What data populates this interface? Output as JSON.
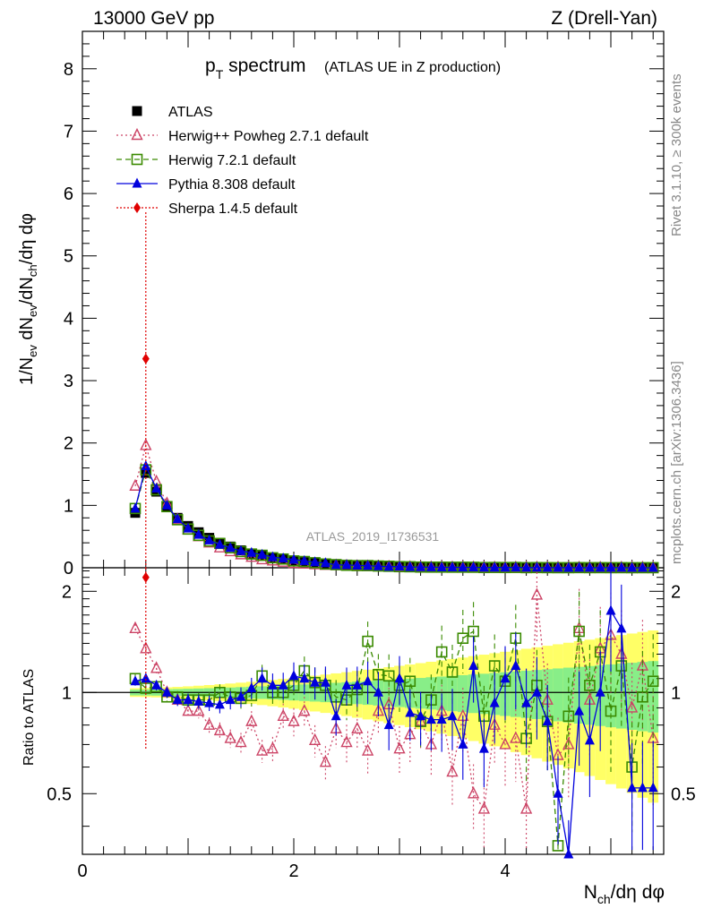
{
  "header": {
    "energy_label": "13000 GeV pp",
    "process_label": "Z (Drell-Yan)"
  },
  "side_labels": {
    "rivet": "Rivet 3.1.10, ≥ 300k events",
    "mcplots": "mcplots.cern.ch [arXiv:1306.3436]"
  },
  "title": {
    "main": "p",
    "sub": "T",
    "rest": " spectrum",
    "small": "(ATLAS UE in Z production)"
  },
  "watermark": "ATLAS_2019_I1736531",
  "axes": {
    "ylabel_main": "1/N_ev dN_ev/dN_ch/dη dφ",
    "ylabel_ratio": "Ratio to ATLAS",
    "xlabel": "N_ch/dη dφ",
    "main_ticks": [
      "0",
      "1",
      "2",
      "3",
      "4",
      "5",
      "6",
      "7",
      "8"
    ],
    "ratio_ticks": [
      "0.5",
      "1",
      "2"
    ],
    "x_ticks": [
      "0",
      "2",
      "4"
    ]
  },
  "colors": {
    "atlas": "#000000",
    "herwigpp": "#cc4466",
    "herwig7": "#3a8a00",
    "pythia": "#0000dd",
    "sherpa": "#e00000",
    "band_yellow": "#ffff66",
    "band_green": "#88ee88"
  },
  "legend": [
    {
      "key": "atlas",
      "label": "ATLAS"
    },
    {
      "key": "herwigpp",
      "label": "Herwig++ Powheg 2.7.1 default"
    },
    {
      "key": "herwig7",
      "label": "Herwig 7.2.1 default"
    },
    {
      "key": "pythia",
      "label": "Pythia 8.308 default"
    },
    {
      "key": "sherpa",
      "label": "Sherpa 1.4.5 default"
    }
  ],
  "chart_data": {
    "type": "scatter",
    "title": "pT spectrum (ATLAS UE in Z production)",
    "xlabel": "N_ch/dη dφ",
    "ylabel": "1/N_ev dN_ev/dN_ch/dη dφ",
    "xlim": [
      0,
      5.5
    ],
    "ylim_main": [
      0,
      8.6
    ],
    "ylim_ratio": [
      0.33,
      2.35
    ],
    "x": [
      0.5,
      0.6,
      0.7,
      0.8,
      0.9,
      1.0,
      1.1,
      1.2,
      1.3,
      1.4,
      1.5,
      1.6,
      1.7,
      1.8,
      1.9,
      2.0,
      2.1,
      2.2,
      2.3,
      2.4,
      2.5,
      2.6,
      2.7,
      2.8,
      2.9,
      3.0,
      3.1,
      3.2,
      3.3,
      3.4,
      3.5,
      3.6,
      3.7,
      3.8,
      3.9,
      4.0,
      4.1,
      4.2,
      4.3,
      4.4,
      4.5,
      4.6,
      4.7,
      4.8,
      4.9,
      5.0,
      5.1,
      5.2,
      5.3,
      5.4
    ],
    "atlas_values": [
      0.88,
      1.52,
      1.22,
      0.98,
      0.8,
      0.67,
      0.57,
      0.48,
      0.4,
      0.34,
      0.28,
      0.23,
      0.19,
      0.16,
      0.13,
      0.11,
      0.09,
      0.075,
      0.063,
      0.052,
      0.043,
      0.036,
      0.03,
      0.025,
      0.021,
      0.018,
      0.015,
      0.013,
      0.011,
      0.009,
      0.008,
      0.007,
      0.006,
      0.005,
      0.0045,
      0.004,
      0.0035,
      0.003,
      0.0027,
      0.0024,
      0.0021,
      0.0019,
      0.0017,
      0.0015,
      0.0013,
      0.0012,
      0.0011,
      0.001,
      0.0009,
      0.0008
    ],
    "series": [
      {
        "name": "Herwig++ Powheg 2.7.1 default",
        "key": "herwigpp",
        "main": [
          1.31,
          1.96,
          1.38,
          1.03,
          0.77,
          0.61,
          0.5,
          0.4,
          0.32,
          0.26,
          0.21,
          0.17,
          0.13,
          0.11,
          0.09,
          0.07,
          0.06,
          0.05,
          0.04,
          0.035,
          0.03,
          0.025,
          0.02,
          0.017,
          0.015,
          0.012,
          0.01,
          0.008,
          0.007,
          0.006,
          0.005,
          0.005,
          0.004,
          0.003,
          0.003,
          0.002,
          0.002,
          0.002,
          0.002,
          0.0015,
          0.0012,
          0.0011,
          0.001,
          0.0009,
          0.0008,
          0.0007,
          0.0006,
          0.0006,
          0.0005,
          0.0005
        ],
        "ratio": [
          1.55,
          1.35,
          1.18,
          1.0,
          0.95,
          0.88,
          0.88,
          0.8,
          0.77,
          0.73,
          0.71,
          0.82,
          0.67,
          0.68,
          0.85,
          0.82,
          0.88,
          0.72,
          0.62,
          0.78,
          0.71,
          0.78,
          0.67,
          0.88,
          0.92,
          0.68,
          0.75,
          0.82,
          0.7,
          0.88,
          0.58,
          0.85,
          0.5,
          0.45,
          0.8,
          0.7,
          0.73,
          0.45,
          1.95,
          0.95,
          0.65,
          0.7,
          1.55,
          0.95,
          1.35,
          1.48,
          1.3,
          0.9,
          1.2,
          0.73
        ]
      },
      {
        "name": "Herwig 7.2.1 default",
        "key": "herwig7",
        "main": [
          0.95,
          1.57,
          1.25,
          0.98,
          0.77,
          0.62,
          0.52,
          0.43,
          0.39,
          0.32,
          0.26,
          0.22,
          0.2,
          0.16,
          0.14,
          0.11,
          0.1,
          0.08,
          0.06,
          0.05,
          0.04,
          0.035,
          0.035,
          0.028,
          0.024,
          0.018,
          0.016,
          0.011,
          0.01,
          0.01,
          0.009,
          0.009,
          0.008,
          0.004,
          0.005,
          0.004,
          0.005,
          0.002,
          0.003,
          0.002,
          0.001,
          0.0013,
          0.0026,
          0.0016,
          0.0017,
          0.0011,
          0.0013,
          0.0006,
          0.0009,
          0.0009
        ],
        "ratio": [
          1.1,
          1.03,
          1.04,
          0.97,
          0.97,
          0.95,
          0.95,
          0.95,
          1.0,
          0.97,
          0.96,
          0.98,
          1.12,
          1.0,
          1.0,
          1.05,
          1.16,
          1.07,
          1.05,
          0.97,
          0.95,
          1.02,
          1.42,
          1.13,
          1.12,
          1.05,
          1.08,
          0.82,
          0.95,
          1.32,
          1.15,
          1.45,
          1.52,
          0.85,
          1.2,
          1.08,
          1.45,
          0.73,
          1.05,
          0.82,
          0.35,
          0.85,
          1.52,
          1.05,
          1.32,
          0.88,
          1.2,
          0.6,
          0.97,
          1.08
        ]
      },
      {
        "name": "Pythia 8.308 default",
        "key": "pythia",
        "main": [
          0.95,
          1.63,
          1.27,
          1.0,
          0.78,
          0.63,
          0.53,
          0.44,
          0.37,
          0.32,
          0.27,
          0.24,
          0.21,
          0.17,
          0.15,
          0.13,
          0.11,
          0.09,
          0.075,
          0.045,
          0.045,
          0.038,
          0.032,
          0.025,
          0.017,
          0.02,
          0.013,
          0.011,
          0.009,
          0.0075,
          0.0068,
          0.005,
          0.0072,
          0.0034,
          0.0042,
          0.0044,
          0.0049,
          0.0028,
          0.0027,
          0.002,
          0.0011,
          0.0006,
          0.0015,
          0.0011,
          0.0013,
          0.0021,
          0.0017,
          0.0005,
          0.0005,
          0.0005
        ],
        "ratio": [
          1.08,
          1.1,
          1.05,
          1.0,
          0.95,
          0.95,
          0.94,
          0.93,
          0.92,
          0.95,
          0.97,
          1.03,
          1.1,
          1.05,
          1.05,
          1.12,
          1.1,
          1.07,
          1.07,
          0.85,
          1.05,
          1.05,
          1.08,
          1.0,
          0.8,
          1.1,
          0.87,
          0.85,
          0.83,
          0.83,
          0.85,
          0.7,
          1.2,
          0.68,
          0.93,
          1.1,
          1.2,
          0.93,
          1.0,
          0.82,
          0.5,
          0.32,
          0.88,
          0.72,
          1.0,
          1.75,
          1.55,
          0.52,
          0.52,
          0.52
        ]
      },
      {
        "name": "Sherpa 1.4.5 default",
        "key": "sherpa",
        "main": [
          null,
          3.35
        ],
        "ratio": [
          null,
          2.2
        ]
      }
    ],
    "sherpa_error_main": [
      0.0,
      5.7
    ],
    "sherpa_error_ratio": [
      0.68,
      2.35
    ]
  }
}
